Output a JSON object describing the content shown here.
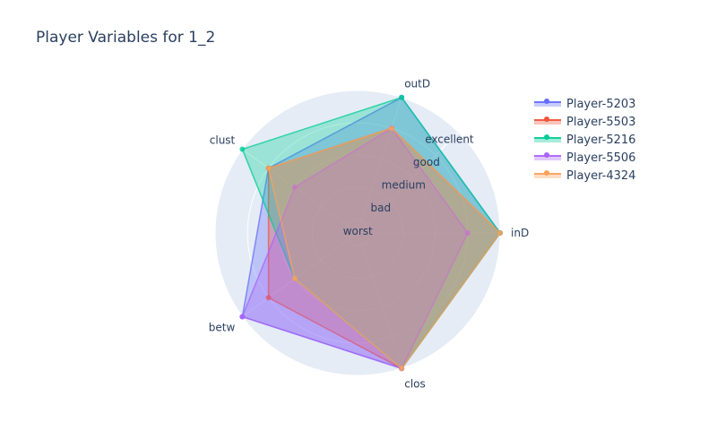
{
  "chart_data": {
    "type": "radar",
    "title": "Player Variables for 1_2",
    "axes": [
      "inD",
      "outD",
      "clust",
      "betw",
      "clos"
    ],
    "radial_levels": [
      "worst",
      "bad",
      "medium",
      "good",
      "excellent"
    ],
    "grid": true,
    "legend_position": "top-right",
    "series": [
      {
        "name": "Player-5203",
        "color": "#636efa",
        "values": [
          "excellent",
          "excellent",
          "good",
          "excellent",
          "excellent"
        ]
      },
      {
        "name": "Player-5503",
        "color": "#ef553b",
        "values": [
          "excellent",
          "good",
          "good",
          "good",
          "excellent"
        ]
      },
      {
        "name": "Player-5216",
        "color": "#00cc96",
        "values": [
          "excellent",
          "excellent",
          "excellent",
          "medium",
          "excellent"
        ]
      },
      {
        "name": "Player-5506",
        "color": "#ab63fa",
        "values": [
          "good",
          "good",
          "medium",
          "excellent",
          "excellent"
        ]
      },
      {
        "name": "Player-4324",
        "color": "#ffa15a",
        "values": [
          "excellent",
          "good",
          "good",
          "medium",
          "excellent"
        ]
      }
    ]
  }
}
